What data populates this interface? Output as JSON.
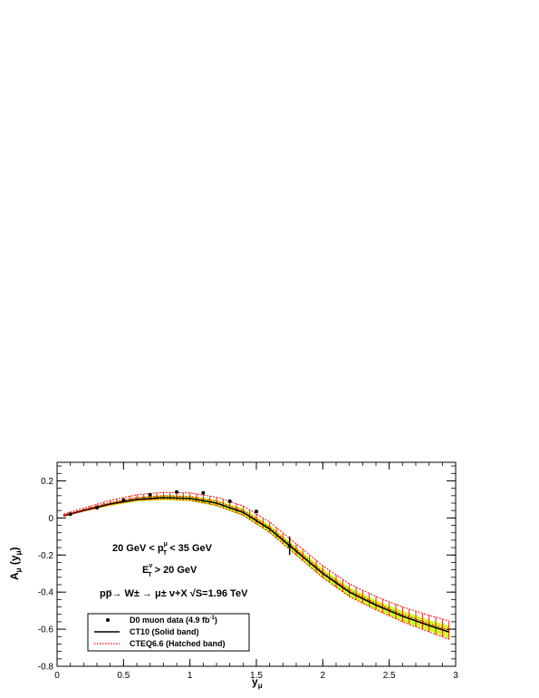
{
  "chart_data": {
    "type": "line",
    "xlabel": "y",
    "xlabel_sub": "μ",
    "ylabel": "A",
    "ylabel_sub": "μ",
    "ylabel_arg": "(y",
    "ylabel_arg_sub": "μ",
    "ylabel_close": ")",
    "xlim": [
      0,
      3
    ],
    "ylim": [
      -0.8,
      0.3
    ],
    "x_ticks": [
      0,
      0.5,
      1,
      1.5,
      2,
      2.5,
      3
    ],
    "x_tick_labels": [
      "0",
      "0.5",
      "1",
      "1.5",
      "2",
      "2.5",
      "3"
    ],
    "y_ticks": [
      -0.8,
      -0.6,
      -0.4,
      -0.2,
      0,
      0.2
    ],
    "y_tick_labels": [
      "-0.8",
      "-0.6",
      "-0.4",
      "-0.2",
      "0",
      "0.2"
    ],
    "grid": false,
    "legend_position": "bottom-left",
    "annotations": {
      "pt_cut": {
        "pre": "20 GeV < p",
        "sup": "μ",
        "sub": "T",
        "post": " < 35 GeV"
      },
      "et_cut": {
        "pre": "E",
        "sup": "ν",
        "sub": "T",
        "post": " > 20 GeV"
      },
      "process": "pp̅→ W± → μ± ν+X  √S=1.96 TeV"
    },
    "series": [
      {
        "name": "D0 muon data (4.9 fb",
        "name_sup": "-1",
        "name_close": ")",
        "kind": "points",
        "color": "#000000",
        "x": [
          0.1,
          0.3,
          0.5,
          0.7,
          0.9,
          1.1,
          1.3,
          1.5,
          1.75
        ],
        "y": [
          0.02,
          0.055,
          0.095,
          0.125,
          0.14,
          0.135,
          0.09,
          0.035,
          -0.15
        ],
        "yerr": [
          0.004,
          0.004,
          0.004,
          0.004,
          0.004,
          0.004,
          0.004,
          0.004,
          0.05
        ]
      },
      {
        "name": "CT10 (Solid band)",
        "kind": "line-band",
        "color": "#000000",
        "band_color": "#ccff33",
        "x": [
          0.05,
          0.2,
          0.4,
          0.6,
          0.8,
          1.0,
          1.2,
          1.4,
          1.6,
          1.8,
          2.0,
          2.2,
          2.4,
          2.6,
          2.8,
          2.95
        ],
        "y": [
          0.012,
          0.04,
          0.075,
          0.1,
          0.11,
          0.105,
          0.08,
          0.03,
          -0.06,
          -0.18,
          -0.3,
          -0.4,
          -0.47,
          -0.53,
          -0.58,
          -0.615
        ],
        "band": [
          0.005,
          0.007,
          0.01,
          0.012,
          0.014,
          0.015,
          0.017,
          0.02,
          0.022,
          0.024,
          0.026,
          0.026,
          0.026,
          0.028,
          0.03,
          0.035
        ]
      },
      {
        "name": "CTEQ6.6 (Hatched band)",
        "kind": "dashed-band",
        "color": "#ff0000",
        "x": [
          0.05,
          0.2,
          0.4,
          0.6,
          0.8,
          1.0,
          1.2,
          1.4,
          1.6,
          1.8,
          2.0,
          2.2,
          2.4,
          2.6,
          2.8,
          2.95
        ],
        "y": [
          0.015,
          0.045,
          0.083,
          0.11,
          0.12,
          0.115,
          0.09,
          0.04,
          -0.05,
          -0.17,
          -0.29,
          -0.39,
          -0.46,
          -0.52,
          -0.57,
          -0.605
        ],
        "band": [
          0.006,
          0.008,
          0.012,
          0.015,
          0.018,
          0.02,
          0.022,
          0.025,
          0.028,
          0.03,
          0.032,
          0.034,
          0.036,
          0.04,
          0.045,
          0.05
        ]
      }
    ]
  }
}
